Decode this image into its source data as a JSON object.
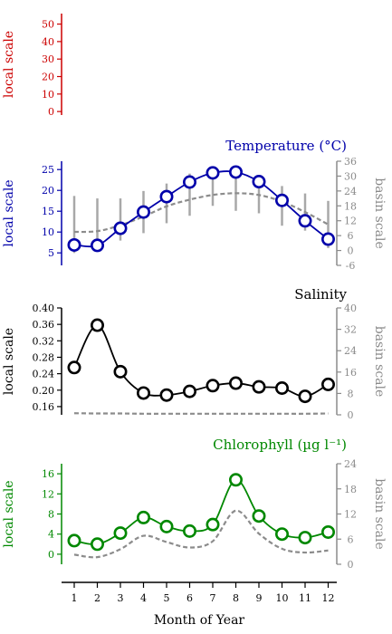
{
  "chart_data": [
    {
      "type": "line",
      "title": "",
      "ylabel_left": "local scale",
      "left_color": "#cc0000",
      "left_ticks": [
        0,
        10,
        20,
        30,
        40,
        50
      ],
      "ylim_left": [
        -2,
        56
      ]
    },
    {
      "type": "line",
      "title": "Temperature (°C)",
      "title_color": "#0000aa",
      "ylabel_left": "local scale",
      "ylabel_right": "basin scale",
      "left_color": "#0000aa",
      "left_ticks": [
        5,
        10,
        15,
        20,
        25
      ],
      "ylim_left": [
        2,
        27
      ],
      "right_ticks": [
        -6,
        0,
        6,
        12,
        18,
        24,
        30,
        36
      ],
      "ylim_right": [
        -6,
        36
      ],
      "x": [
        1,
        2,
        3,
        4,
        5,
        6,
        7,
        8,
        9,
        10,
        11,
        12
      ],
      "series": [
        {
          "role": "local",
          "values": [
            6.9,
            6.8,
            10.9,
            14.8,
            18.5,
            22.0,
            24.2,
            24.4,
            22.1,
            17.6,
            12.7,
            8.3
          ]
        },
        {
          "role": "basin",
          "values": [
            7.5,
            7.8,
            10.2,
            13.7,
            17.8,
            20.5,
            22.4,
            23.1,
            22.4,
            19.7,
            15.5,
            10.5
          ]
        }
      ],
      "ranges": [
        [
          -1,
          22
        ],
        [
          0,
          21
        ],
        [
          4,
          21
        ],
        [
          7,
          24
        ],
        [
          11,
          27
        ],
        [
          14,
          31
        ],
        [
          18,
          31
        ],
        [
          16,
          31
        ],
        [
          15,
          30
        ],
        [
          10,
          26
        ],
        [
          8,
          23
        ],
        [
          1,
          20
        ]
      ]
    },
    {
      "type": "line",
      "title": "Salinity",
      "title_color": "#000000",
      "ylabel_left": "local scale",
      "ylabel_right": "basin scale",
      "left_color": "#000000",
      "left_ticks": [
        0.16,
        0.2,
        0.24,
        0.28,
        0.32,
        0.36,
        0.4
      ],
      "left_tick_labels": [
        "0.16",
        "0.20",
        "0.24",
        "0.28",
        "0.32",
        "0.36",
        "0.40"
      ],
      "ylim_left": [
        0.14,
        0.4
      ],
      "right_ticks": [
        0,
        8,
        16,
        24,
        32,
        40
      ],
      "ylim_right": [
        0,
        40
      ],
      "x": [
        1,
        2,
        3,
        4,
        5,
        6,
        7,
        8,
        9,
        10,
        11,
        12
      ],
      "series": [
        {
          "role": "local",
          "values": [
            0.255,
            0.358,
            0.245,
            0.193,
            0.188,
            0.197,
            0.211,
            0.217,
            0.208,
            0.205,
            0.185,
            0.214
          ]
        },
        {
          "role": "basin",
          "values": [
            0.6,
            0.5,
            0.5,
            0.4,
            0.4,
            0.4,
            0.4,
            0.4,
            0.4,
            0.4,
            0.4,
            0.5
          ]
        }
      ]
    },
    {
      "type": "line",
      "title": "Chlorophyll (µg l⁻¹)",
      "title_color": "#008800",
      "ylabel_left": "local scale",
      "ylabel_right": "basin scale",
      "left_color": "#008800",
      "left_ticks": [
        0,
        4,
        8,
        12,
        16
      ],
      "ylim_left": [
        -2,
        18
      ],
      "right_ticks": [
        0,
        6,
        12,
        18,
        24
      ],
      "ylim_right": [
        0,
        24
      ],
      "x": [
        1,
        2,
        3,
        4,
        5,
        6,
        7,
        8,
        9,
        10,
        11,
        12
      ],
      "series": [
        {
          "role": "local",
          "values": [
            2.7,
            2.0,
            4.2,
            7.3,
            5.5,
            4.6,
            5.9,
            14.8,
            7.6,
            4.0,
            3.3,
            4.4
          ]
        },
        {
          "role": "basin",
          "values": [
            2.3,
            1.7,
            3.6,
            6.8,
            5.3,
            4.0,
            5.5,
            12.8,
            7.3,
            3.7,
            2.8,
            3.3
          ]
        }
      ]
    }
  ],
  "xaxis": {
    "label": "Month of Year",
    "ticks": [
      1,
      2,
      3,
      4,
      5,
      6,
      7,
      8,
      9,
      10,
      11,
      12
    ]
  }
}
